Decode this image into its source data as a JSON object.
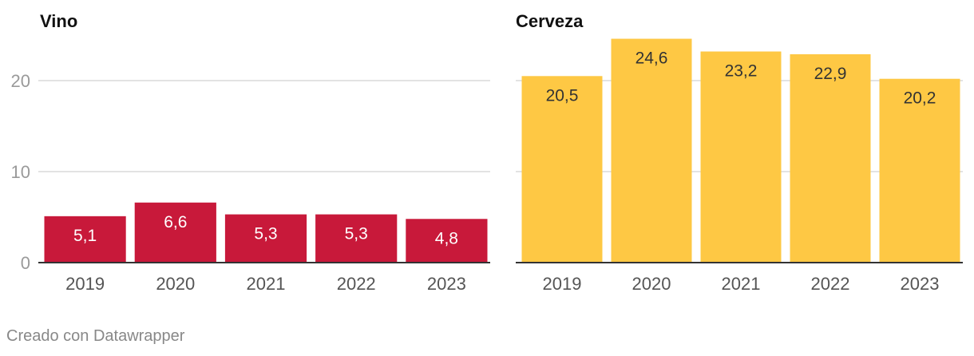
{
  "chart_data": [
    {
      "type": "bar",
      "title": "Vino",
      "categories": [
        "2019",
        "2020",
        "2021",
        "2022",
        "2023"
      ],
      "values": [
        5.1,
        6.6,
        5.3,
        5.3,
        4.8
      ],
      "value_labels": [
        "5,1",
        "6,6",
        "5,3",
        "5,3",
        "4,8"
      ],
      "y_ticks": [
        0,
        10,
        20
      ],
      "y_tick_labels": [
        "0",
        "10",
        "20"
      ],
      "ylim": [
        0,
        24.6
      ],
      "grid": true,
      "color": "#c8193a",
      "label_color": "#ffffff"
    },
    {
      "type": "bar",
      "title": "Cerveza",
      "categories": [
        "2019",
        "2020",
        "2021",
        "2022",
        "2023"
      ],
      "values": [
        20.5,
        24.6,
        23.2,
        22.9,
        20.2
      ],
      "value_labels": [
        "20,5",
        "24,6",
        "23,2",
        "22,9",
        "20,2"
      ],
      "y_ticks": [
        0,
        10,
        20
      ],
      "ylim": [
        0,
        24.6
      ],
      "grid": true,
      "color": "#fec844",
      "label_color": "#333333"
    }
  ],
  "footer": "Creado con Datawrapper"
}
